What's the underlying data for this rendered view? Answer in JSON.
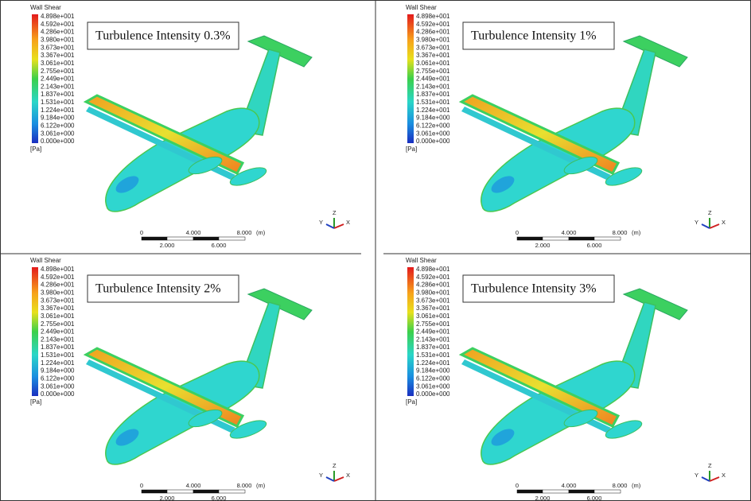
{
  "panels": [
    {
      "title": "Turbulence Intensity 0.3%"
    },
    {
      "title": "Turbulence Intensity 1%"
    },
    {
      "title": "Turbulence Intensity 2%"
    },
    {
      "title": "Turbulence Intensity 3%"
    }
  ],
  "legend": {
    "title": "Wall Shear",
    "unit": "[Pa]",
    "labels": [
      "4.898e+001",
      "4.592e+001",
      "4.286e+001",
      "3.980e+001",
      "3.673e+001",
      "3.367e+001",
      "3.061e+001",
      "2.755e+001",
      "2.449e+001",
      "2.143e+001",
      "1.837e+001",
      "1.531e+001",
      "1.224e+001",
      "9.184e+000",
      "6.122e+000",
      "3.061e+000",
      "0.000e+000"
    ]
  },
  "scale_bar": {
    "top": [
      "0",
      "4.000",
      "8.000",
      "(m)"
    ],
    "bottom": [
      "2.000",
      "6.000"
    ]
  },
  "axes": {
    "y": "Y",
    "z": "Z",
    "x": "X"
  }
}
